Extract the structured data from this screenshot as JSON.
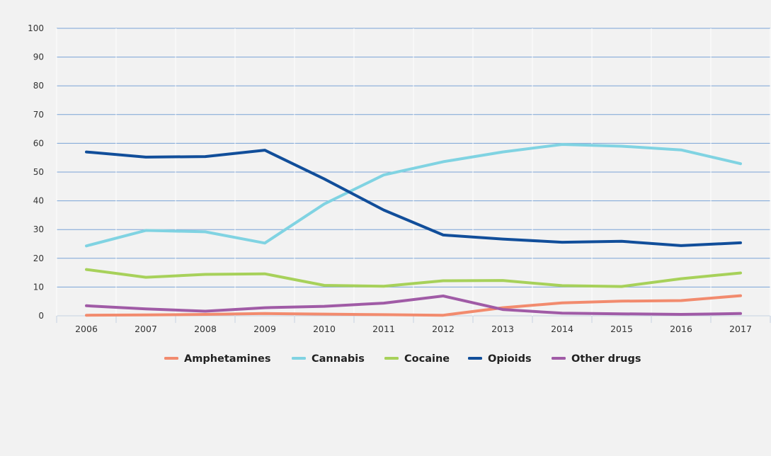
{
  "chart_data": {
    "type": "line",
    "title": "",
    "xlabel": "",
    "ylabel": "",
    "categories": [
      "2006",
      "2007",
      "2008",
      "2009",
      "2010",
      "2011",
      "2012",
      "2013",
      "2014",
      "2015",
      "2016",
      "2017"
    ],
    "ylim": [
      0,
      100
    ],
    "yticks": [
      0,
      10,
      20,
      30,
      40,
      50,
      60,
      70,
      80,
      90,
      100
    ],
    "grid": true,
    "legend_position": "bottom",
    "series": [
      {
        "name": "Amphetamines",
        "color": "#f28b6e",
        "values": [
          0.2,
          0.3,
          0.5,
          0.8,
          0.6,
          0.4,
          0.2,
          2.8,
          4.5,
          5.1,
          5.3,
          7.0
        ]
      },
      {
        "name": "Cannabis",
        "color": "#80d3e2",
        "values": [
          24.3,
          29.7,
          29.2,
          25.3,
          38.9,
          49.0,
          53.6,
          57.0,
          59.6,
          59.0,
          57.7,
          52.9
        ]
      },
      {
        "name": "Cocaine",
        "color": "#a7d15a",
        "values": [
          16.1,
          13.4,
          14.4,
          14.6,
          10.6,
          10.3,
          12.2,
          12.3,
          10.5,
          10.2,
          12.9,
          14.9
        ]
      },
      {
        "name": "Opioids",
        "color": "#114e9a",
        "values": [
          57.0,
          55.2,
          55.4,
          57.6,
          47.6,
          36.8,
          28.1,
          26.7,
          25.6,
          25.9,
          24.4,
          25.4
        ]
      },
      {
        "name": "Other drugs",
        "color": "#a05ba6",
        "values": [
          3.5,
          2.4,
          1.6,
          2.8,
          3.3,
          4.4,
          6.9,
          2.2,
          0.9,
          0.7,
          0.5,
          0.8
        ]
      }
    ]
  }
}
